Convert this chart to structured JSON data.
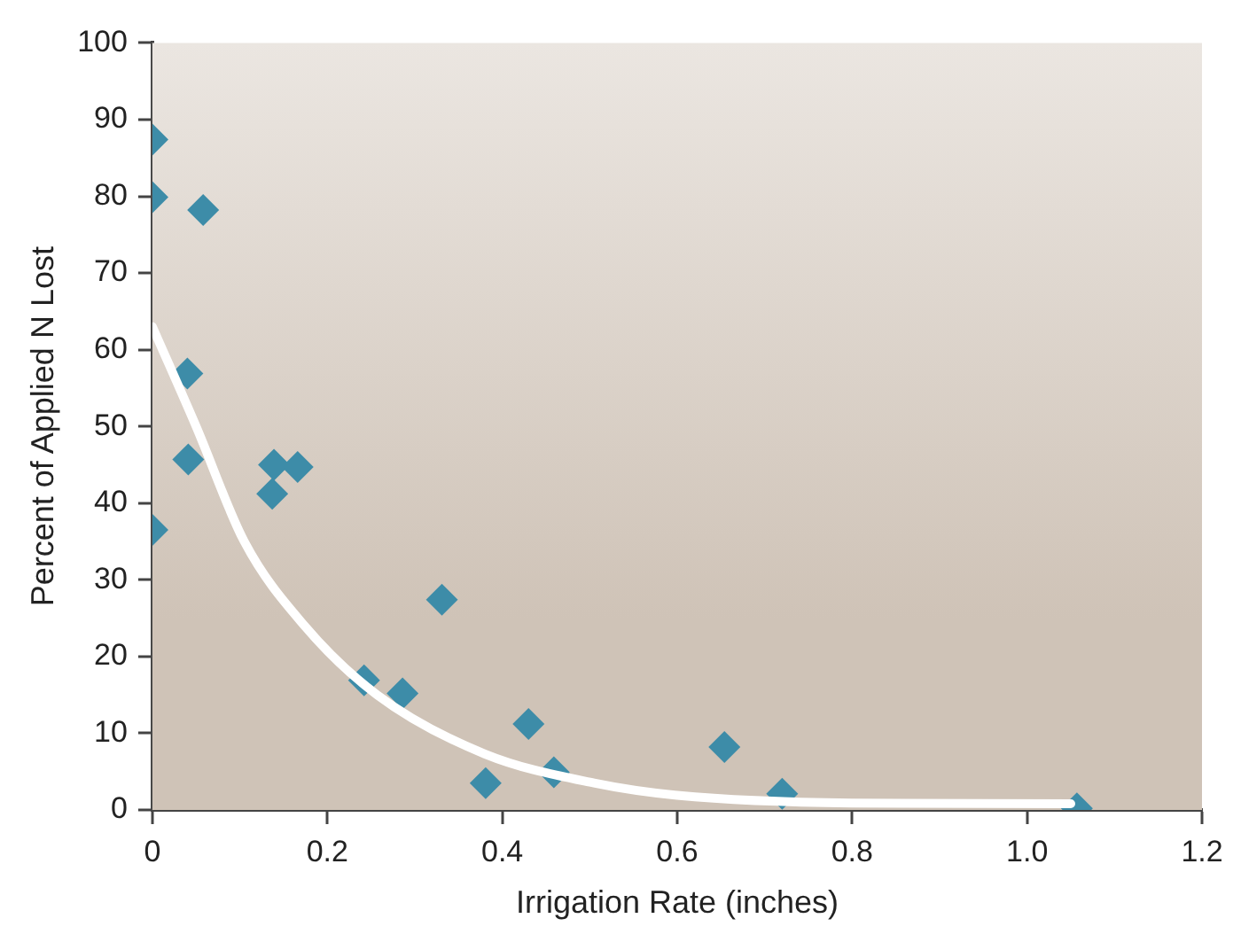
{
  "chart_data": {
    "type": "scatter",
    "xlabel": "Irrigation Rate (inches)",
    "ylabel": "Percent of Applied N Lost",
    "xlim": [
      0,
      1.2
    ],
    "xticks": [
      0,
      0.2,
      0.4,
      0.6,
      0.8,
      {
        "value": 1.0,
        "label": "1.0"
      },
      1.2
    ],
    "ylim": [
      0,
      100
    ],
    "yticks": [
      0,
      10,
      20,
      30,
      40,
      50,
      60,
      70,
      80,
      90,
      100
    ],
    "grid": false,
    "legend": false,
    "series": [
      {
        "color": "#3d8ca8",
        "marker": "diamond",
        "x": [
          0,
          0,
          0.058,
          0.04,
          0.041,
          0,
          0.139,
          0.166,
          0.137,
          0.331,
          0.242,
          0.286,
          0.381,
          0.43,
          0.459,
          0.654,
          0.72,
          1.057
        ],
        "values": [
          87.4,
          79.9,
          78.2,
          56.9,
          45.7,
          36.5,
          45,
          44.7,
          41.2,
          27.4,
          16.9,
          15.2,
          3.5,
          11.2,
          4.9,
          8.2,
          2.1,
          0.2
        ]
      },
      {
        "type": "line",
        "color": "#ffffff",
        "marker": "none",
        "line_style": "solid",
        "x": [
          0,
          0.05,
          0.105,
          0.174,
          0.257,
          0.38,
          0.505,
          0.6,
          0.8,
          1.05
        ],
        "values": [
          63,
          50,
          35,
          24,
          15,
          7.3,
          3.5,
          1.9,
          0.9,
          0.8
        ]
      }
    ]
  }
}
